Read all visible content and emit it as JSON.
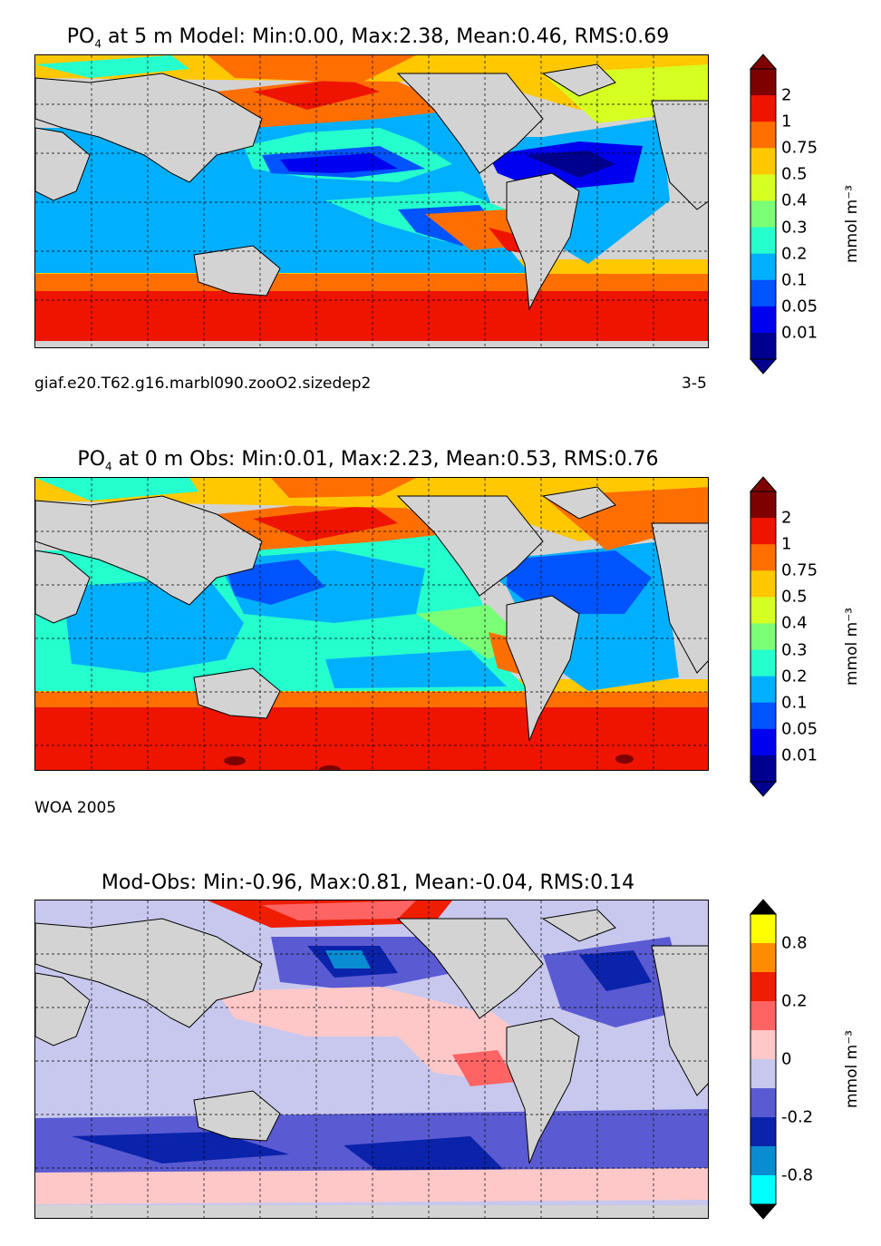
{
  "panels": [
    {
      "title": "PO4  at 5 m Model: Min:0.00, Max:2.38, Mean:0.46, RMS:0.69",
      "title_var": "PO",
      "title_sub": "4",
      "title_rest": "  at 5 m Model: Min:0.00, Max:2.38, Mean:0.46, RMS:0.69",
      "footer_left": "giaf.e20.T62.g16.marbl090.zooO2.sizedep2",
      "footer_right": "3-5",
      "colorbar": {
        "labels": [
          "2",
          "1",
          "0.75",
          "0.5",
          "0.4",
          "0.3",
          "0.2",
          "0.1",
          "0.05",
          "0.01"
        ],
        "colors": [
          "#7f0000",
          "#ef1400",
          "#ff6e00",
          "#ffc800",
          "#d6ff22",
          "#7aff76",
          "#25ffce",
          "#00b0ff",
          "#0054ff",
          "#0000f1",
          "#00008f"
        ],
        "extend_top": "#7f0000",
        "extend_bottom": "#00008f",
        "unit": "mmol m⁻³"
      }
    },
    {
      "title": "PO4  at 0 m Obs: Min:0.01, Max:2.23, Mean:0.53, RMS:0.76",
      "title_var": "PO",
      "title_sub": "4",
      "title_rest": "  at 0 m Obs: Min:0.01, Max:2.23, Mean:0.53, RMS:0.76",
      "footer_left": "WOA 2005",
      "footer_right": "",
      "colorbar": {
        "labels": [
          "2",
          "1",
          "0.75",
          "0.5",
          "0.4",
          "0.3",
          "0.2",
          "0.1",
          "0.05",
          "0.01"
        ],
        "colors": [
          "#7f0000",
          "#ef1400",
          "#ff6e00",
          "#ffc800",
          "#d6ff22",
          "#7aff76",
          "#25ffce",
          "#00b0ff",
          "#0054ff",
          "#0000f1",
          "#00008f"
        ],
        "extend_top": "#7f0000",
        "extend_bottom": "#00008f",
        "unit": "mmol m⁻³"
      }
    },
    {
      "title": "Mod-Obs: Min:-0.96, Max:0.81, Mean:-0.04, RMS:0.14",
      "title_var": "",
      "title_sub": "",
      "title_rest": "Mod-Obs: Min:-0.96, Max:0.81, Mean:-0.04, RMS:0.14",
      "footer_left": "",
      "footer_right": "",
      "colorbar": {
        "labels": [
          "0.8",
          "0.2",
          "0",
          "-0.2",
          "-0.8"
        ],
        "label_slots": [
          1,
          3,
          5,
          7,
          9
        ],
        "colors": [
          "#ffff00",
          "#ff8c00",
          "#f01e00",
          "#ff6464",
          "#ffc8c8",
          "#c8c8ef",
          "#5a5ad2",
          "#0a23aa",
          "#0a8cd2",
          "#00ffff"
        ],
        "extend_top": "#000000",
        "extend_bottom": "#000000",
        "unit": "mmol m⁻³"
      }
    }
  ],
  "land_color": "#d3d3d3"
}
